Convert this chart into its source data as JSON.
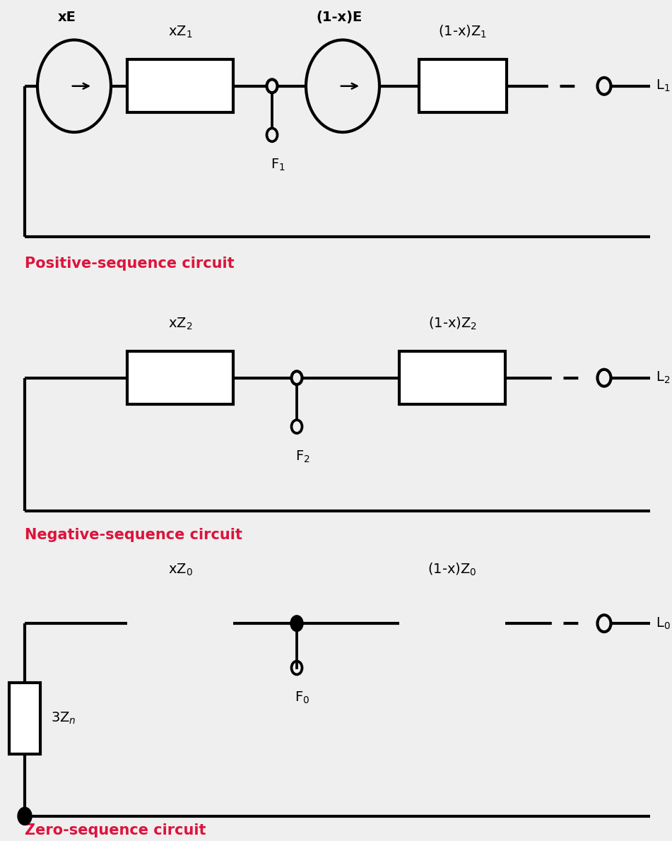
{
  "bg_color": "#efefef",
  "line_color": "black",
  "label_color": "crimson",
  "lw": 3.0,
  "circuit1": {
    "title": "Positive-sequence circuit",
    "src1_label": "xE",
    "src2_label": "(1-x)E",
    "res1_label": "xZ",
    "res1_sub": "1",
    "res2_label": "(1-x)Z",
    "res2_sub": "1",
    "fault_label": "F",
    "fault_sub": "1",
    "load_label": "L",
    "load_sub": "1"
  },
  "circuit2": {
    "title": "Negative-sequence circuit",
    "res1_label": "xZ",
    "res1_sub": "2",
    "res2_label": "(1-x)Z",
    "res2_sub": "2",
    "fault_label": "F",
    "fault_sub": "2",
    "load_label": "L",
    "load_sub": "2"
  },
  "circuit3": {
    "title": "Zero-sequence circuit",
    "res1_label": "xZ",
    "res1_sub": "0",
    "res2_label": "(1-x)Z",
    "res2_sub": "0",
    "fault_label": "F",
    "fault_sub": "0",
    "load_label": "L",
    "load_sub": "0",
    "zn_label": "3Z",
    "zn_sub": "n"
  }
}
